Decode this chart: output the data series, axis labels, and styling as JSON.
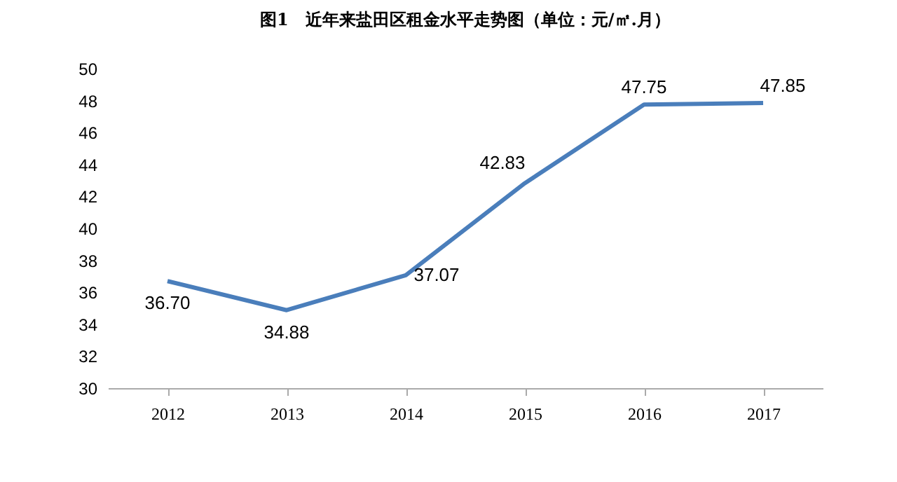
{
  "chart_data": {
    "type": "line",
    "title": "图1　近年来盐田区租金水平走势图（单位：元/㎡.月）",
    "categories": [
      "2012",
      "2013",
      "2014",
      "2015",
      "2016",
      "2017"
    ],
    "series": [
      {
        "color": "#4a7ebb",
        "values": [
          36.7,
          34.88,
          37.07,
          42.83,
          47.75,
          47.85
        ],
        "value_labels": [
          "36.70",
          "34.88",
          "37.07",
          "42.83",
          "47.75",
          "47.85"
        ]
      }
    ],
    "ylim": [
      30,
      50
    ],
    "yticks": [
      30,
      32,
      34,
      36,
      38,
      40,
      42,
      44,
      46,
      48,
      50
    ],
    "grid": false,
    "legend": false,
    "marker": "none",
    "line_style": "solid"
  }
}
